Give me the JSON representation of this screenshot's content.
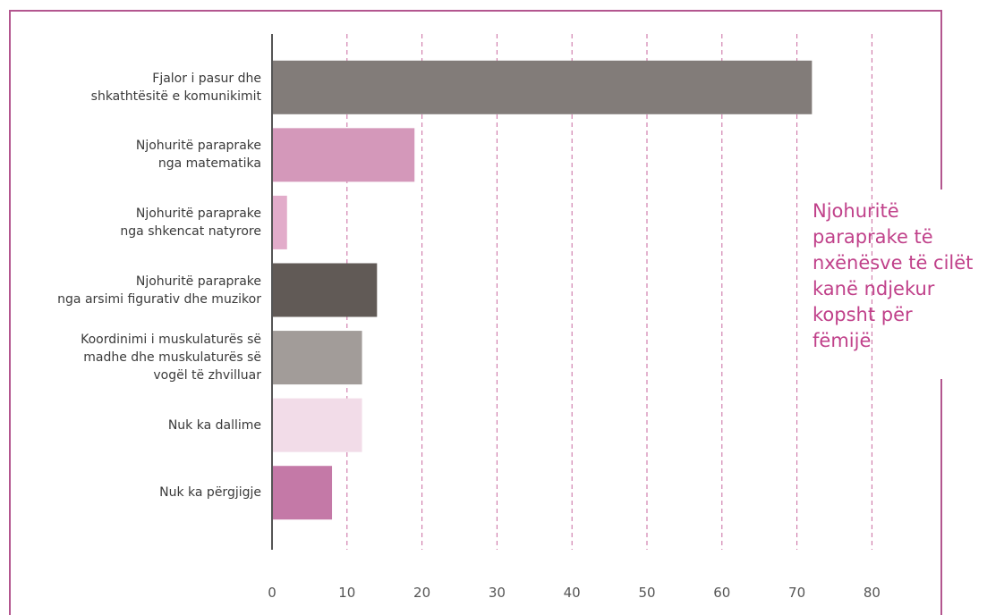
{
  "chart_data": {
    "type": "bar",
    "orientation": "horizontal",
    "title": "Njohuritë\nparaprake të\nnxënësve të cilët\nkanë ndjekur\nkopsht për\nfëmijë",
    "categories": [
      "Fjalor i pasur dhe\nshkathtësitë e komunikimit",
      "Njohuritë paraprake\nnga matematika",
      "Njohuritë paraprake\nnga shkencat natyrore",
      "Njohuritë paraprake\nnga arsimi figurativ dhe muzikor",
      "Koordinimi i muskulaturës së\nmadhe dhe muskulaturës së\nvogël të zhvilluar",
      "Nuk ka dallime",
      "Nuk ka përgjigje"
    ],
    "values": [
      72,
      19,
      2,
      14,
      12,
      12,
      8
    ],
    "colors": [
      "#827c79",
      "#d498ba",
      "#e2acca",
      "#615a56",
      "#a29c99",
      "#f2dce8",
      "#c479a7"
    ],
    "xlim": [
      0,
      80
    ],
    "xticks": [
      0,
      10,
      20,
      30,
      40,
      50,
      60,
      70,
      80
    ],
    "grid": true
  }
}
